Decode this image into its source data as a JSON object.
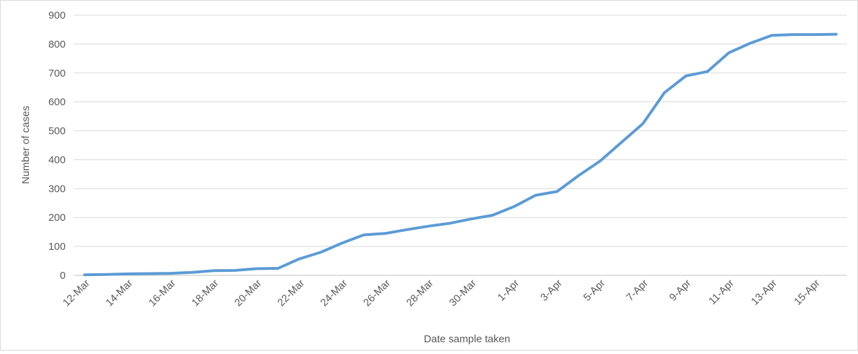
{
  "chart_data": {
    "type": "line",
    "x_label": "Date sample taken",
    "y_label": "Number of cases",
    "categories": [
      "12-Mar",
      null,
      "14-Mar",
      null,
      "16-Mar",
      null,
      "18-Mar",
      null,
      "20-Mar",
      null,
      "22-Mar",
      null,
      "24-Mar",
      null,
      "26-Mar",
      null,
      "28-Mar",
      null,
      "30-Mar",
      null,
      "1-Apr",
      null,
      "3-Apr",
      null,
      "5-Apr",
      null,
      "7-Apr",
      null,
      "9-Apr",
      null,
      "11-Apr",
      null,
      "13-Apr",
      null,
      "15-Apr",
      null
    ],
    "values": [
      2,
      3,
      5,
      6,
      7,
      10,
      16,
      17,
      23,
      24,
      57,
      80,
      112,
      140,
      145,
      158,
      170,
      180,
      195,
      208,
      238,
      277,
      290,
      345,
      395,
      460,
      525,
      632,
      690,
      705,
      770,
      803,
      830,
      833,
      833,
      834
    ],
    "color": "#5b9bd5",
    "ylim": [
      0,
      900
    ],
    "yticks": [
      0,
      100,
      200,
      300,
      400,
      500,
      600,
      700,
      800,
      900
    ],
    "grid": true
  }
}
